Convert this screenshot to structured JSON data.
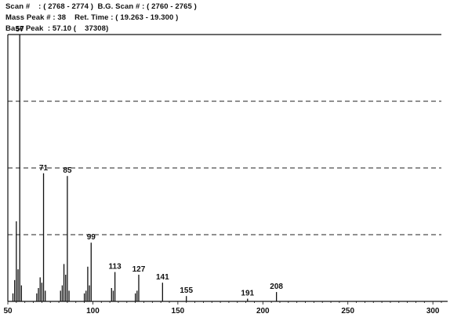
{
  "header": {
    "line1": "Scan #    : ( 2768 - 2774 )  B.G. Scan # : ( 2760 - 2765 )",
    "line2": "Mass Peak # : 38    Ret. Time : ( 19.263 - 19.300 )",
    "line3": "Base Peak  : 57.10 (    37308)"
  },
  "chart_data": {
    "type": "bar",
    "xlim": [
      50,
      305
    ],
    "ylim": [
      0,
      100
    ],
    "xticks": [
      50,
      100,
      150,
      200,
      250,
      300
    ],
    "grid": true,
    "peaks": [
      {
        "mz": 53,
        "intensity": 3
      },
      {
        "mz": 54,
        "intensity": 8
      },
      {
        "mz": 55,
        "intensity": 30
      },
      {
        "mz": 56,
        "intensity": 12
      },
      {
        "mz": 57,
        "intensity": 100,
        "label": "57"
      },
      {
        "mz": 58,
        "intensity": 6
      },
      {
        "mz": 67,
        "intensity": 3
      },
      {
        "mz": 68,
        "intensity": 5
      },
      {
        "mz": 69,
        "intensity": 9
      },
      {
        "mz": 70,
        "intensity": 7
      },
      {
        "mz": 71,
        "intensity": 48,
        "label": "71"
      },
      {
        "mz": 72,
        "intensity": 4
      },
      {
        "mz": 81,
        "intensity": 4
      },
      {
        "mz": 82,
        "intensity": 6
      },
      {
        "mz": 83,
        "intensity": 14
      },
      {
        "mz": 84,
        "intensity": 10
      },
      {
        "mz": 85,
        "intensity": 47,
        "label": "85"
      },
      {
        "mz": 86,
        "intensity": 4
      },
      {
        "mz": 95,
        "intensity": 3
      },
      {
        "mz": 96,
        "intensity": 4
      },
      {
        "mz": 97,
        "intensity": 13
      },
      {
        "mz": 98,
        "intensity": 6
      },
      {
        "mz": 99,
        "intensity": 22,
        "label": "99"
      },
      {
        "mz": 111,
        "intensity": 5
      },
      {
        "mz": 112,
        "intensity": 4
      },
      {
        "mz": 113,
        "intensity": 11,
        "label": "113"
      },
      {
        "mz": 125,
        "intensity": 3
      },
      {
        "mz": 126,
        "intensity": 4
      },
      {
        "mz": 127,
        "intensity": 10,
        "label": "127"
      },
      {
        "mz": 141,
        "intensity": 7,
        "label": "141"
      },
      {
        "mz": 155,
        "intensity": 2,
        "label": "155"
      },
      {
        "mz": 191,
        "intensity": 1,
        "label": "191"
      },
      {
        "mz": 208,
        "intensity": 3.5,
        "label": "208"
      }
    ]
  }
}
